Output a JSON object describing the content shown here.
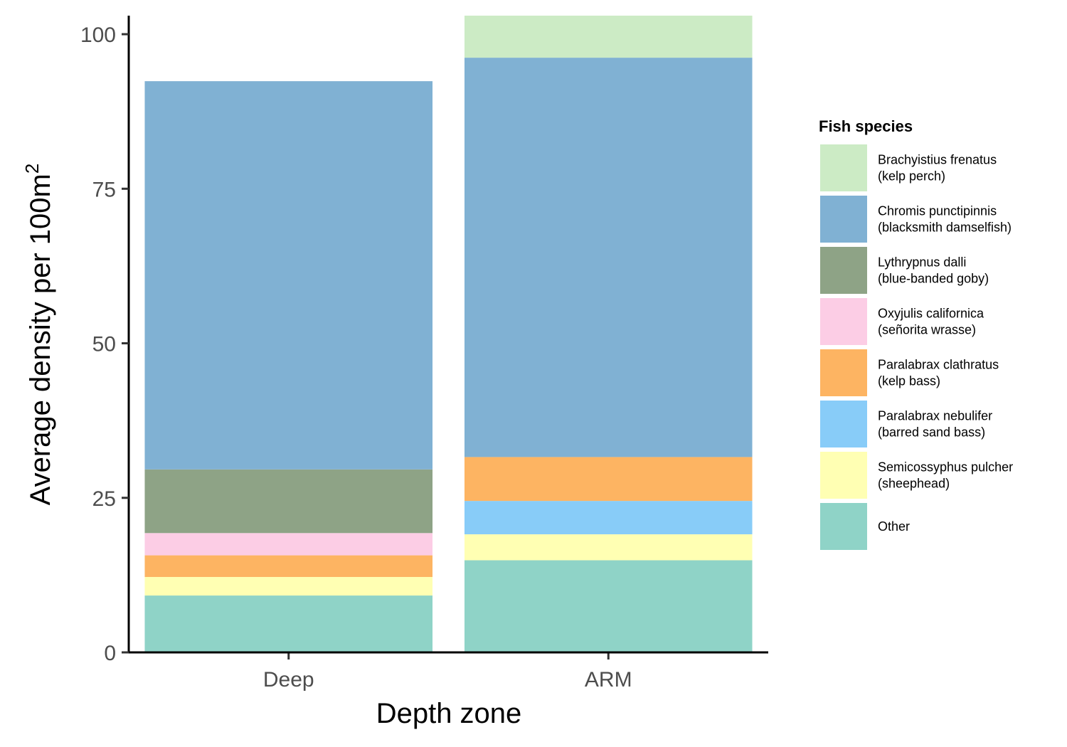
{
  "chart_data": {
    "type": "bar",
    "stacked": true,
    "categories": [
      "Deep",
      "ARM"
    ],
    "xlabel": "Depth zone",
    "ylabel": "Average density per 100m",
    "ylabel_superscript": "2",
    "ylim": [
      0,
      103
    ],
    "yticks": [
      "0",
      "25",
      "50",
      "75",
      "100"
    ],
    "legend": {
      "title": "Fish species",
      "placement": "right"
    },
    "series": [
      {
        "name": "Other",
        "label_lines": [
          "Other"
        ],
        "color": "#8fd3c7",
        "values": [
          9.2,
          14.9
        ]
      },
      {
        "name": "Semicossyphus pulcher (sheephead)",
        "label_lines": [
          "Semicossyphus pulcher",
          "(sheephead)"
        ],
        "color": "#ffffb3",
        "values": [
          3.0,
          4.2
        ]
      },
      {
        "name": "Paralabrax nebulifer (barred sand bass)",
        "label_lines": [
          "Paralabrax nebulifer",
          "(barred sand bass)"
        ],
        "color": "#88ccf8",
        "values": [
          0,
          5.4
        ]
      },
      {
        "name": "Paralabrax clathratus (kelp bass)",
        "label_lines": [
          "Paralabrax clathratus",
          "(kelp bass)"
        ],
        "color": "#fdb462",
        "values": [
          3.5,
          7.1
        ]
      },
      {
        "name": "Oxyjulis californica (señorita wrasse)",
        "label_lines": [
          "Oxyjulis californica",
          "(señorita wrasse)"
        ],
        "color": "#fccde5",
        "values": [
          3.6,
          0
        ]
      },
      {
        "name": "Lythrypnus dalli (blue-banded goby)",
        "label_lines": [
          "Lythrypnus dalli",
          "(blue-banded goby)"
        ],
        "color": "#8ea386",
        "values": [
          10.3,
          0
        ]
      },
      {
        "name": "Chromis punctipinnis (blacksmith damselfish)",
        "label_lines": [
          "Chromis punctipinnis",
          "(blacksmith damselfish)"
        ],
        "color": "#80b1d3",
        "values": [
          62.8,
          64.6
        ]
      },
      {
        "name": "Brachyistius frenatus (kelp perch)",
        "label_lines": [
          "Brachyistius frenatus",
          "(kelp perch)"
        ],
        "color": "#ccebc5",
        "values": [
          0,
          6.8
        ]
      }
    ]
  }
}
